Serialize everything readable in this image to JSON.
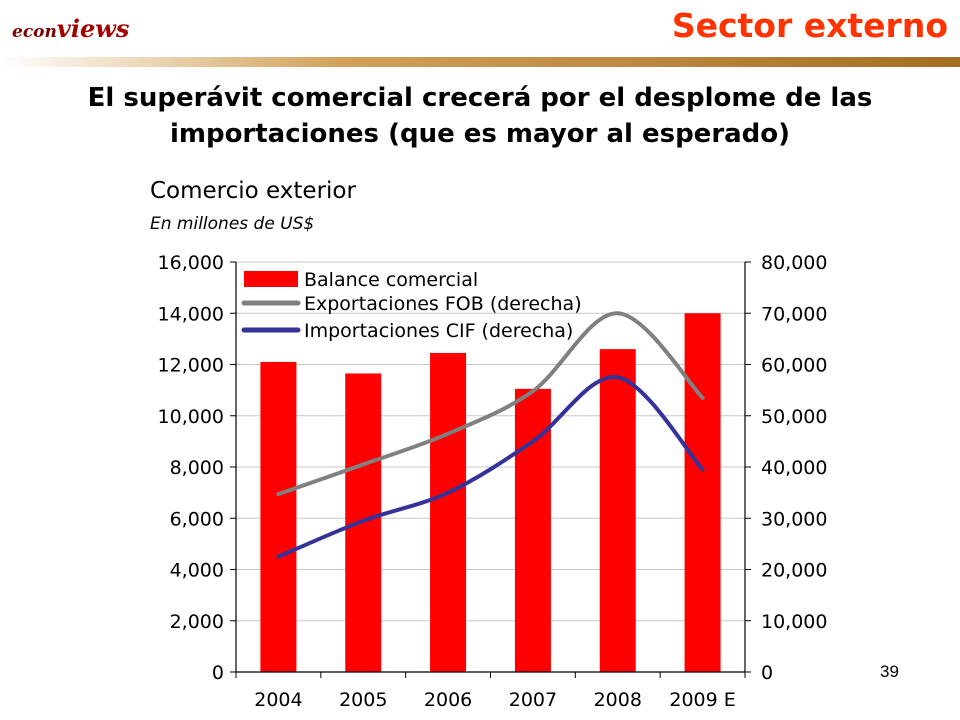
{
  "header": {
    "logo_part1": "econ",
    "logo_part2": "views",
    "section": "Sector externo",
    "headline_line1": "El superávit comercial crecerá por el desplome de las",
    "headline_line2": "importaciones (que es mayor al esperado)",
    "page_number": "39"
  },
  "colors": {
    "bar": "#ff0000",
    "exports_line": "#808080",
    "imports_line": "#333399",
    "section_title": "#ff3300"
  },
  "chart_data": {
    "type": "bar",
    "title": "Comercio exterior",
    "subtitle": "En millones de US$",
    "categories": [
      "2004",
      "2005",
      "2006",
      "2007",
      "2008",
      "2009 E"
    ],
    "left_axis": {
      "min": 0,
      "max": 16000,
      "ticks": [
        "0",
        "2,000",
        "4,000",
        "6,000",
        "8,000",
        "10,000",
        "12,000",
        "14,000",
        "16,000"
      ]
    },
    "right_axis": {
      "min": 0,
      "max": 80000,
      "ticks": [
        "0",
        "10,000",
        "20,000",
        "30,000",
        "40,000",
        "50,000",
        "60,000",
        "70,000",
        "80,000"
      ]
    },
    "series": [
      {
        "name": "Balance comercial",
        "type": "bar",
        "axis": "left",
        "values": [
          12100,
          11650,
          12450,
          11050,
          12600,
          14000
        ]
      },
      {
        "name": "Exportaciones FOB (derecha)",
        "type": "line",
        "axis": "right",
        "values": [
          34700,
          40500,
          46500,
          54800,
          70000,
          53500
        ]
      },
      {
        "name": "Importaciones CIF (derecha)",
        "type": "line",
        "axis": "right",
        "values": [
          22500,
          29500,
          35000,
          45000,
          57500,
          39500
        ]
      }
    ],
    "grid": true,
    "legend": "top-left"
  }
}
